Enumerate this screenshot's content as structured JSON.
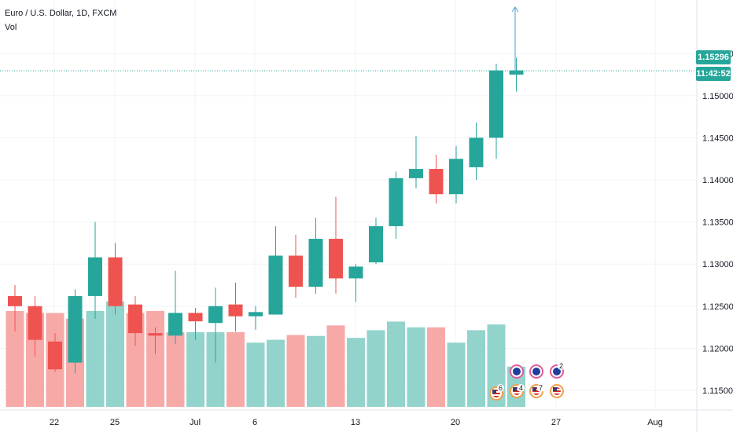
{
  "legend": {
    "symbol": "Euro / U.S. Dollar, 1D, FXCM",
    "volume_label": "Vol"
  },
  "price_axis": {
    "ticks": [
      "1.15500",
      "1.15000",
      "1.14500",
      "1.14000",
      "1.13500",
      "1.13000",
      "1.12500",
      "1.12000",
      "1.11500"
    ],
    "current_price_label": "1.15296",
    "countdown_label": "11:42:52"
  },
  "time_axis": {
    "ticks": [
      "22",
      "25",
      "Jul",
      "6",
      "13",
      "20",
      "27",
      "Aug"
    ]
  },
  "events": [
    {
      "flags": [
        "us"
      ],
      "count": "6"
    },
    {
      "flags": [
        "eu",
        "us"
      ],
      "count": "4"
    },
    {
      "flags": [
        "eu",
        "us"
      ],
      "count": "7"
    },
    {
      "flags": [
        "eu",
        "us"
      ],
      "count": "2"
    }
  ],
  "colors": {
    "up": "#26a69a",
    "down": "#ef5350",
    "up_volume": "#92d3cc",
    "down_volume": "#f7a9a7",
    "price_line": "#26a69a"
  },
  "chart_data": {
    "type": "candlestick",
    "title": "Euro / U.S. Dollar, 1D, FXCM",
    "ylim": [
      1.1135,
      1.1595
    ],
    "current_price": 1.15296,
    "candles": [
      {
        "open": 1.1262,
        "high": 1.1275,
        "low": 1.122,
        "close": 1.125
      },
      {
        "open": 1.125,
        "high": 1.1262,
        "low": 1.119,
        "close": 1.121
      },
      {
        "open": 1.1208,
        "high": 1.1218,
        "low": 1.1172,
        "close": 1.1175
      },
      {
        "open": 1.1183,
        "high": 1.127,
        "low": 1.117,
        "close": 1.1262
      },
      {
        "open": 1.1262,
        "high": 1.135,
        "low": 1.1235,
        "close": 1.1308
      },
      {
        "open": 1.1308,
        "high": 1.1325,
        "low": 1.124,
        "close": 1.125
      },
      {
        "open": 1.1252,
        "high": 1.1262,
        "low": 1.1203,
        "close": 1.1218
      },
      {
        "open": 1.1218,
        "high": 1.1225,
        "low": 1.1193,
        "close": 1.1215
      },
      {
        "open": 1.1215,
        "high": 1.1292,
        "low": 1.1205,
        "close": 1.1242
      },
      {
        "open": 1.1242,
        "high": 1.1248,
        "low": 1.121,
        "close": 1.1232
      },
      {
        "open": 1.123,
        "high": 1.1272,
        "low": 1.1183,
        "close": 1.125
      },
      {
        "open": 1.1252,
        "high": 1.1278,
        "low": 1.122,
        "close": 1.1238
      },
      {
        "open": 1.1238,
        "high": 1.125,
        "low": 1.1222,
        "close": 1.1243
      },
      {
        "open": 1.124,
        "high": 1.1345,
        "low": 1.124,
        "close": 1.131
      },
      {
        "open": 1.131,
        "high": 1.1335,
        "low": 1.126,
        "close": 1.1273
      },
      {
        "open": 1.1273,
        "high": 1.1355,
        "low": 1.1265,
        "close": 1.133
      },
      {
        "open": 1.133,
        "high": 1.138,
        "low": 1.1265,
        "close": 1.1283
      },
      {
        "open": 1.1283,
        "high": 1.13,
        "low": 1.1255,
        "close": 1.1297
      },
      {
        "open": 1.1302,
        "high": 1.1355,
        "low": 1.13,
        "close": 1.1345
      },
      {
        "open": 1.1345,
        "high": 1.141,
        "low": 1.133,
        "close": 1.1402
      },
      {
        "open": 1.1402,
        "high": 1.1452,
        "low": 1.139,
        "close": 1.1413
      },
      {
        "open": 1.1413,
        "high": 1.143,
        "low": 1.1372,
        "close": 1.1383
      },
      {
        "open": 1.1383,
        "high": 1.144,
        "low": 1.1372,
        "close": 1.1425
      },
      {
        "open": 1.1415,
        "high": 1.1468,
        "low": 1.14,
        "close": 1.145
      },
      {
        "open": 1.145,
        "high": 1.1538,
        "low": 1.1425,
        "close": 1.153
      },
      {
        "open": 1.1525,
        "high": 1.1545,
        "low": 1.1505,
        "close": 1.153
      }
    ],
    "volume": [
      {
        "value": 1.0,
        "dir": "down"
      },
      {
        "value": 0.98,
        "dir": "down"
      },
      {
        "value": 0.98,
        "dir": "down"
      },
      {
        "value": 0.92,
        "dir": "down"
      },
      {
        "value": 1.0,
        "dir": "up"
      },
      {
        "value": 1.1,
        "dir": "up"
      },
      {
        "value": 0.98,
        "dir": "down"
      },
      {
        "value": 1.0,
        "dir": "down"
      },
      {
        "value": 0.78,
        "dir": "down"
      },
      {
        "value": 0.78,
        "dir": "up"
      },
      {
        "value": 0.78,
        "dir": "up"
      },
      {
        "value": 0.78,
        "dir": "down"
      },
      {
        "value": 0.67,
        "dir": "up"
      },
      {
        "value": 0.7,
        "dir": "up"
      },
      {
        "value": 0.75,
        "dir": "down"
      },
      {
        "value": 0.74,
        "dir": "up"
      },
      {
        "value": 0.85,
        "dir": "down"
      },
      {
        "value": 0.72,
        "dir": "up"
      },
      {
        "value": 0.8,
        "dir": "up"
      },
      {
        "value": 0.89,
        "dir": "up"
      },
      {
        "value": 0.83,
        "dir": "up"
      },
      {
        "value": 0.83,
        "dir": "down"
      },
      {
        "value": 0.67,
        "dir": "up"
      },
      {
        "value": 0.8,
        "dir": "up"
      },
      {
        "value": 0.86,
        "dir": "up"
      },
      {
        "value": 0.42,
        "dir": "up"
      }
    ]
  }
}
